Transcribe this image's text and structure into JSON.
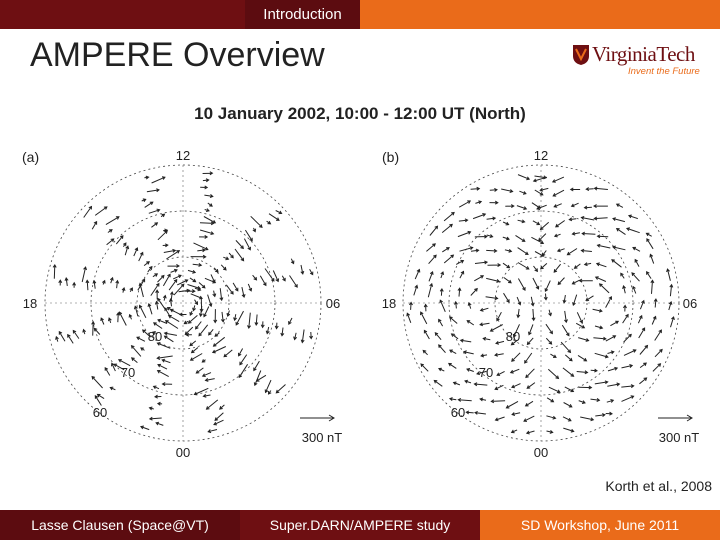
{
  "header": {
    "section_tab": "Introduction",
    "slide_title": "AMPERE Overview"
  },
  "logo": {
    "name": "VirginiaTech",
    "tagline": "Invent the Future"
  },
  "figure": {
    "title": "10 January 2002, 10:00 - 12:00 UT (North)",
    "panels": [
      {
        "label": "(a)",
        "mlt_labels": {
          "top": "12",
          "left": "18",
          "right": "06",
          "bottom": "00"
        },
        "lat_labels": [
          "80",
          "70",
          "60"
        ],
        "scale": "300 nT"
      },
      {
        "label": "(b)",
        "mlt_labels": {
          "top": "12",
          "left": "18",
          "right": "06",
          "bottom": "00"
        },
        "lat_labels": [
          "80",
          "70",
          "60"
        ],
        "scale": "300 nT"
      }
    ]
  },
  "credit": "Korth et al., 2008",
  "footer": {
    "author": "Lasse Clausen (Space@VT)",
    "study": "Super.DARN/AMPERE study",
    "event": "SD Workshop, June 2011"
  },
  "colors": {
    "maroon": "#6e0f12",
    "maroon_dark": "#5c0c10",
    "orange": "#ea6b1a"
  }
}
